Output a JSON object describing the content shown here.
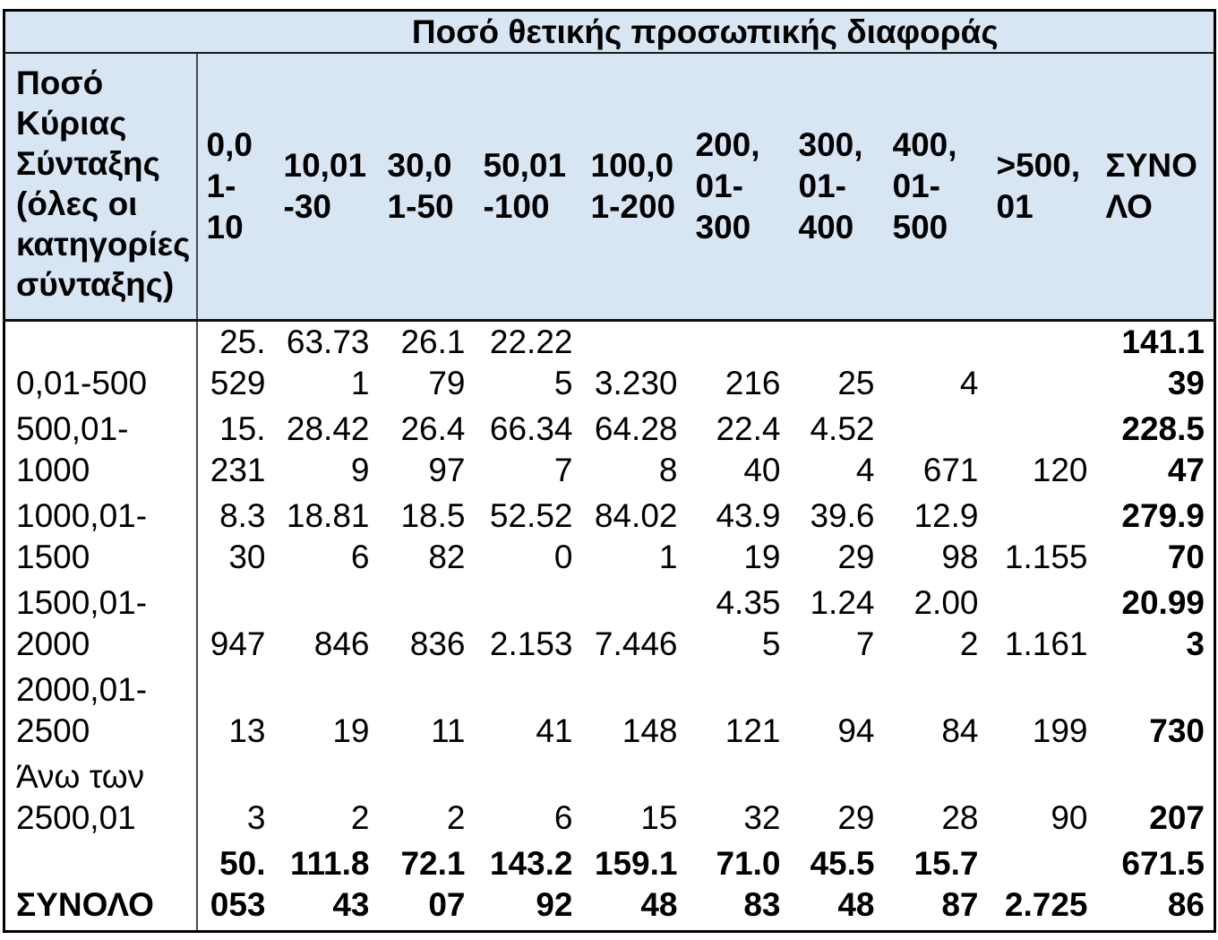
{
  "colors": {
    "header_fill": "#d8e5f2",
    "outer_border": "#000000",
    "column_divider": "#4b4b4b",
    "text": "#000000",
    "background": "#ffffff"
  },
  "table": {
    "title": "Ποσό θετικής προσωπικής διαφοράς",
    "corner_header": {
      "text": "Ποσό Κύριας Σύνταξης (όλες οι κατηγορίες σύνταξης)",
      "display": "Ποσό\nΚύριας\nΣύνταξης\n(όλες οι\nκατηγορίες\nσύνταξης)"
    },
    "columns": [
      {
        "range": "0,01-10",
        "display": "0,0\n1-\n10"
      },
      {
        "range": "10,01-30",
        "display": "10,01\n-30"
      },
      {
        "range": "30,01-50",
        "display": "30,0\n1-50"
      },
      {
        "range": "50,01-100",
        "display": "50,01\n-100"
      },
      {
        "range": "100,01-200",
        "display": "100,0\n1-200"
      },
      {
        "range": "200,01-300",
        "display": "200,\n01-\n300"
      },
      {
        "range": "300,01-400",
        "display": "300,\n01-\n400"
      },
      {
        "range": "400,01-500",
        "display": "400,\n01-\n500"
      },
      {
        "range": ">500,01",
        "display": ">500,\n01"
      },
      {
        "range": "ΣΥΝΟΛΟ",
        "display": "ΣΥΝΟ\nΛΟ"
      }
    ],
    "rows": [
      {
        "label": "0,01-500",
        "label_display": "0,01-500",
        "is_total": false,
        "values": [
          "25.529",
          "63.731",
          "26.179",
          "22.225",
          "3.230",
          "216",
          "25",
          "4",
          "",
          "141.139"
        ],
        "display": [
          "25.\n529",
          "63.73\n1",
          "26.1\n79",
          "22.22\n5",
          "3.230",
          "216",
          "25",
          "4",
          "",
          "141.1\n39"
        ]
      },
      {
        "label": "500,01-1000",
        "label_display": "500,01-\n1000",
        "is_total": false,
        "values": [
          "15.231",
          "28.429",
          "26.497",
          "66.347",
          "64.288",
          "22.440",
          "4.524",
          "671",
          "120",
          "228.547"
        ],
        "display": [
          "15.\n231",
          "28.42\n9",
          "26.4\n97",
          "66.34\n7",
          "64.28\n8",
          "22.4\n40",
          "4.52\n4",
          "671",
          "120",
          "228.5\n47"
        ]
      },
      {
        "label": "1000,01-1500",
        "label_display": "1000,01-\n1500",
        "is_total": false,
        "values": [
          "8.330",
          "18.816",
          "18.582",
          "52.520",
          "84.021",
          "43.919",
          "39.629",
          "12.998",
          "1.155",
          "279.970"
        ],
        "display": [
          "8.3\n30",
          "18.81\n6",
          "18.5\n82",
          "52.52\n0",
          "84.02\n1",
          "43.9\n19",
          "39.6\n29",
          "12.9\n98",
          "1.155",
          "279.9\n70"
        ]
      },
      {
        "label": "1500,01-2000",
        "label_display": "1500,01-\n2000",
        "is_total": false,
        "values": [
          "947",
          "846",
          "836",
          "2.153",
          "7.446",
          "4.355",
          "1.247",
          "2.002",
          "1.161",
          "20.993"
        ],
        "display": [
          "947",
          "846",
          "836",
          "2.153",
          "7.446",
          "4.35\n5",
          "1.24\n7",
          "2.00\n2",
          "1.161",
          "20.99\n3"
        ]
      },
      {
        "label": "2000,01-2500",
        "label_display": "2000,01-\n2500",
        "is_total": false,
        "values": [
          "13",
          "19",
          "11",
          "41",
          "148",
          "121",
          "94",
          "84",
          "199",
          "730"
        ],
        "display": [
          "13",
          "19",
          "11",
          "41",
          "148",
          "121",
          "94",
          "84",
          "199",
          "730"
        ]
      },
      {
        "label": "Άνω των 2500,01",
        "label_display": "Άνω των\n2500,01",
        "is_total": false,
        "values": [
          "3",
          "2",
          "2",
          "6",
          "15",
          "32",
          "29",
          "28",
          "90",
          "207"
        ],
        "display": [
          "3",
          "2",
          "2",
          "6",
          "15",
          "32",
          "29",
          "28",
          "90",
          "207"
        ]
      },
      {
        "label": "ΣΥΝΟΛΟ",
        "label_display": "ΣΥΝΟΛΟ",
        "is_total": true,
        "values": [
          "50.053",
          "111.843",
          "72.107",
          "143.292",
          "159.148",
          "71.083",
          "45.548",
          "15.787",
          "2.725",
          "671.586"
        ],
        "display": [
          "50.\n053",
          "111.8\n43",
          "72.1\n07",
          "143.2\n92",
          "159.1\n48",
          "71.0\n83",
          "45.5\n48",
          "15.7\n87",
          "2.725",
          "671.5\n86"
        ]
      }
    ]
  }
}
